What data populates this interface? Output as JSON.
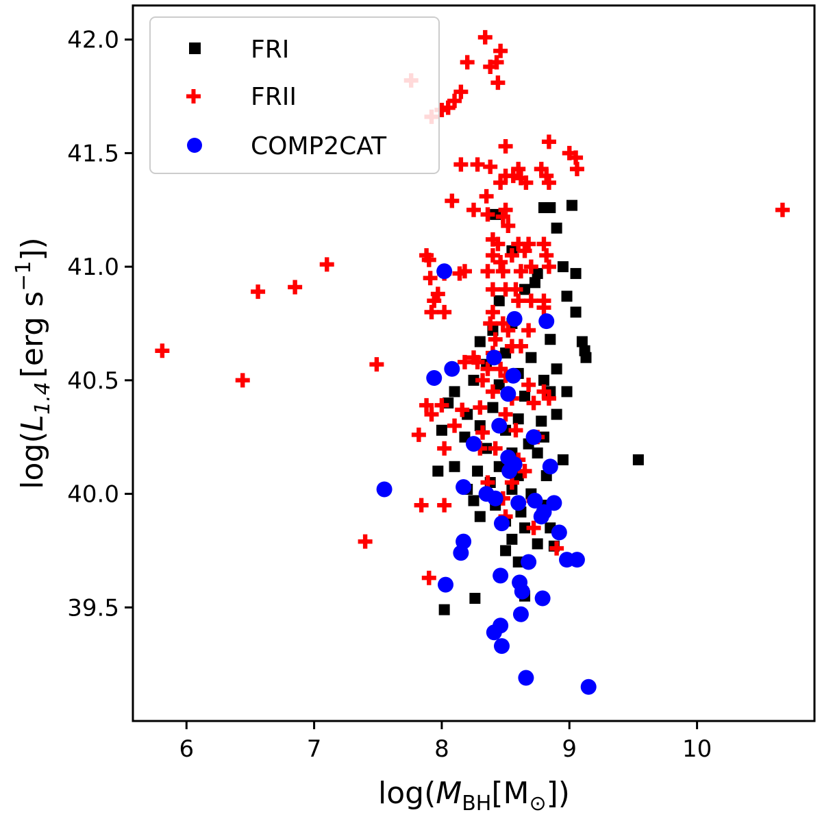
{
  "chart_data": {
    "type": "scatter",
    "title": "",
    "xlabel": {
      "prefix": "log(",
      "var": "M",
      "sub": "BH",
      "bracket_open": "[M",
      "sun": "⊙",
      "suffix": "])"
    },
    "ylabel": {
      "prefix": "log(",
      "var": "L",
      "sub": "1.4",
      "unit": "[erg s",
      "sup": "−1",
      "suffix": "])"
    },
    "xlim": [
      5.58,
      10.92
    ],
    "ylim": [
      39.0,
      42.15
    ],
    "xticks": [
      6,
      7,
      8,
      9,
      10
    ],
    "yticks": [
      39.5,
      40.0,
      40.5,
      41.0,
      41.5,
      42.0
    ],
    "xtick_labels": [
      "6",
      "7",
      "8",
      "9",
      "10"
    ],
    "ytick_labels": [
      "39.5",
      "40.0",
      "40.5",
      "41.0",
      "41.5",
      "42.0"
    ],
    "grid": false,
    "legend_position": "top-left",
    "colors": {
      "FRI": "#000000",
      "FRII": "#ff0000",
      "COMP2CAT": "#0000ff"
    },
    "series": [
      {
        "name": "FRI",
        "marker": "square",
        "points": [
          [
            8.42,
            41.23
          ],
          [
            8.8,
            41.26
          ],
          [
            8.85,
            41.26
          ],
          [
            9.02,
            41.27
          ],
          [
            8.9,
            41.17
          ],
          [
            8.55,
            41.07
          ],
          [
            8.73,
            40.93
          ],
          [
            8.95,
            41.0
          ],
          [
            9.05,
            40.97
          ],
          [
            8.45,
            40.85
          ],
          [
            8.65,
            40.9
          ],
          [
            8.75,
            40.97
          ],
          [
            8.98,
            40.87
          ],
          [
            9.05,
            40.8
          ],
          [
            8.55,
            40.75
          ],
          [
            8.4,
            40.72
          ],
          [
            8.85,
            40.68
          ],
          [
            9.1,
            40.67
          ],
          [
            9.12,
            40.63
          ],
          [
            9.13,
            40.6
          ],
          [
            8.3,
            40.67
          ],
          [
            8.5,
            40.62
          ],
          [
            8.7,
            40.6
          ],
          [
            8.9,
            40.55
          ],
          [
            8.35,
            40.57
          ],
          [
            8.6,
            40.53
          ],
          [
            8.8,
            40.5
          ],
          [
            8.1,
            40.45
          ],
          [
            8.25,
            40.5
          ],
          [
            8.45,
            40.48
          ],
          [
            8.65,
            40.43
          ],
          [
            8.85,
            40.45
          ],
          [
            8.98,
            40.45
          ],
          [
            8.05,
            40.4
          ],
          [
            8.2,
            40.35
          ],
          [
            8.4,
            40.38
          ],
          [
            8.6,
            40.33
          ],
          [
            8.78,
            40.32
          ],
          [
            8.9,
            40.35
          ],
          [
            8.0,
            40.28
          ],
          [
            8.18,
            40.25
          ],
          [
            8.3,
            40.3
          ],
          [
            8.5,
            40.28
          ],
          [
            8.68,
            40.22
          ],
          [
            8.8,
            40.25
          ],
          [
            8.35,
            40.2
          ],
          [
            8.55,
            40.18
          ],
          [
            8.75,
            40.18
          ],
          [
            8.95,
            40.15
          ],
          [
            7.97,
            40.1
          ],
          [
            8.1,
            40.12
          ],
          [
            8.28,
            40.1
          ],
          [
            8.45,
            40.12
          ],
          [
            8.6,
            40.08
          ],
          [
            8.82,
            40.08
          ],
          [
            8.2,
            40.02
          ],
          [
            8.38,
            40.05
          ],
          [
            8.55,
            40.02
          ],
          [
            8.7,
            40.0
          ],
          [
            8.25,
            39.97
          ],
          [
            8.42,
            39.95
          ],
          [
            8.62,
            39.92
          ],
          [
            8.8,
            39.95
          ],
          [
            8.3,
            39.9
          ],
          [
            8.5,
            39.88
          ],
          [
            8.65,
            39.85
          ],
          [
            8.85,
            39.85
          ],
          [
            8.55,
            39.8
          ],
          [
            8.75,
            39.78
          ],
          [
            8.88,
            39.77
          ],
          [
            8.5,
            39.75
          ],
          [
            8.6,
            39.7
          ],
          [
            8.65,
            39.55
          ],
          [
            8.02,
            39.49
          ],
          [
            8.26,
            39.54
          ],
          [
            9.54,
            40.15
          ]
        ]
      },
      {
        "name": "FRII",
        "marker": "plus",
        "points": [
          [
            8.34,
            42.01
          ],
          [
            8.46,
            41.95
          ],
          [
            8.43,
            41.9
          ],
          [
            8.2,
            41.9
          ],
          [
            8.38,
            41.88
          ],
          [
            8.44,
            41.81
          ],
          [
            7.76,
            41.82
          ],
          [
            8.15,
            41.77
          ],
          [
            8.1,
            41.73
          ],
          [
            8.05,
            41.7
          ],
          [
            8.0,
            41.69
          ],
          [
            7.92,
            41.66
          ],
          [
            8.5,
            41.53
          ],
          [
            8.84,
            41.55
          ],
          [
            9.0,
            41.5
          ],
          [
            9.05,
            41.48
          ],
          [
            8.15,
            41.45
          ],
          [
            8.28,
            41.45
          ],
          [
            8.38,
            41.44
          ],
          [
            8.6,
            41.43
          ],
          [
            8.78,
            41.43
          ],
          [
            8.5,
            41.4
          ],
          [
            8.56,
            41.4
          ],
          [
            8.82,
            41.4
          ],
          [
            9.06,
            41.43
          ],
          [
            8.62,
            41.39
          ],
          [
            8.46,
            41.37
          ],
          [
            8.66,
            41.37
          ],
          [
            8.84,
            41.37
          ],
          [
            8.35,
            41.31
          ],
          [
            8.08,
            41.29
          ],
          [
            8.25,
            41.25
          ],
          [
            8.5,
            41.25
          ],
          [
            8.36,
            41.23
          ],
          [
            8.48,
            41.22
          ],
          [
            8.52,
            41.18
          ],
          [
            8.4,
            41.12
          ],
          [
            8.44,
            41.1
          ],
          [
            8.6,
            41.1
          ],
          [
            8.68,
            41.1
          ],
          [
            8.8,
            41.1
          ],
          [
            8.65,
            41.07
          ],
          [
            7.88,
            41.05
          ],
          [
            7.9,
            41.03
          ],
          [
            8.4,
            41.05
          ],
          [
            8.46,
            41.02
          ],
          [
            8.55,
            41.05
          ],
          [
            8.82,
            41.05
          ],
          [
            8.7,
            41.0
          ],
          [
            7.91,
            40.95
          ],
          [
            8.02,
            40.97
          ],
          [
            8.14,
            40.97
          ],
          [
            8.18,
            40.98
          ],
          [
            8.36,
            40.98
          ],
          [
            8.48,
            40.98
          ],
          [
            8.62,
            40.98
          ],
          [
            8.84,
            41.0
          ],
          [
            7.97,
            40.88
          ],
          [
            8.4,
            40.9
          ],
          [
            8.5,
            40.9
          ],
          [
            8.58,
            40.9
          ],
          [
            7.94,
            40.85
          ],
          [
            8.6,
            40.85
          ],
          [
            8.7,
            40.85
          ],
          [
            8.8,
            40.85
          ],
          [
            7.92,
            40.8
          ],
          [
            8.02,
            40.8
          ],
          [
            8.4,
            40.8
          ],
          [
            8.8,
            40.82
          ],
          [
            8.38,
            40.75
          ],
          [
            8.48,
            40.75
          ],
          [
            8.52,
            40.72
          ],
          [
            8.68,
            40.72
          ],
          [
            8.42,
            40.68
          ],
          [
            8.55,
            40.65
          ],
          [
            8.62,
            40.65
          ],
          [
            8.25,
            40.6
          ],
          [
            8.4,
            40.62
          ],
          [
            8.18,
            40.58
          ],
          [
            8.28,
            40.58
          ],
          [
            8.36,
            40.55
          ],
          [
            8.46,
            40.55
          ],
          [
            8.32,
            40.5
          ],
          [
            8.5,
            40.52
          ],
          [
            8.68,
            40.48
          ],
          [
            8.8,
            40.45
          ],
          [
            8.4,
            40.45
          ],
          [
            8.55,
            40.42
          ],
          [
            8.72,
            40.4
          ],
          [
            8.84,
            40.42
          ],
          [
            7.88,
            40.39
          ],
          [
            8.0,
            40.39
          ],
          [
            8.16,
            40.37
          ],
          [
            8.3,
            40.38
          ],
          [
            8.5,
            40.35
          ],
          [
            7.92,
            40.35
          ],
          [
            7.82,
            40.26
          ],
          [
            8.1,
            40.3
          ],
          [
            8.32,
            40.27
          ],
          [
            8.58,
            40.28
          ],
          [
            8.75,
            40.25
          ],
          [
            8.02,
            40.2
          ],
          [
            8.3,
            40.2
          ],
          [
            8.42,
            40.2
          ],
          [
            8.6,
            40.15
          ],
          [
            8.65,
            40.1
          ],
          [
            8.36,
            40.05
          ],
          [
            8.55,
            40.05
          ],
          [
            8.48,
            39.98
          ],
          [
            8.72,
            39.97
          ],
          [
            7.84,
            39.95
          ],
          [
            8.02,
            39.95
          ],
          [
            8.5,
            39.9
          ],
          [
            8.72,
            39.85
          ],
          [
            8.9,
            39.76
          ],
          [
            7.4,
            39.79
          ],
          [
            7.9,
            39.63
          ],
          [
            5.81,
            40.63
          ],
          [
            6.44,
            40.5
          ],
          [
            6.56,
            40.89
          ],
          [
            6.85,
            40.91
          ],
          [
            7.1,
            41.01
          ],
          [
            7.49,
            40.57
          ],
          [
            10.67,
            41.25
          ]
        ]
      },
      {
        "name": "COMP2CAT",
        "marker": "circle",
        "points": [
          [
            8.02,
            40.98
          ],
          [
            8.57,
            40.77
          ],
          [
            8.82,
            40.76
          ],
          [
            8.41,
            40.6
          ],
          [
            8.08,
            40.55
          ],
          [
            7.94,
            40.51
          ],
          [
            8.56,
            40.52
          ],
          [
            8.52,
            40.44
          ],
          [
            8.45,
            40.3
          ],
          [
            8.72,
            40.25
          ],
          [
            8.25,
            40.22
          ],
          [
            8.52,
            40.16
          ],
          [
            8.57,
            40.13
          ],
          [
            8.53,
            40.1
          ],
          [
            8.85,
            40.12
          ],
          [
            8.17,
            40.03
          ],
          [
            7.55,
            40.02
          ],
          [
            8.35,
            40.0
          ],
          [
            8.42,
            39.98
          ],
          [
            8.6,
            39.96
          ],
          [
            8.73,
            39.97
          ],
          [
            8.8,
            39.92
          ],
          [
            8.88,
            39.96
          ],
          [
            8.78,
            39.9
          ],
          [
            8.47,
            39.87
          ],
          [
            8.92,
            39.83
          ],
          [
            8.17,
            39.79
          ],
          [
            8.15,
            39.74
          ],
          [
            8.68,
            39.7
          ],
          [
            8.98,
            39.71
          ],
          [
            9.06,
            39.71
          ],
          [
            8.46,
            39.64
          ],
          [
            8.61,
            39.61
          ],
          [
            8.03,
            39.6
          ],
          [
            8.63,
            39.57
          ],
          [
            8.79,
            39.54
          ],
          [
            8.62,
            39.47
          ],
          [
            8.46,
            39.42
          ],
          [
            8.41,
            39.39
          ],
          [
            8.47,
            39.33
          ],
          [
            8.66,
            39.19
          ],
          [
            9.15,
            39.15
          ]
        ]
      }
    ],
    "legend": [
      {
        "label": "FRI",
        "marker": "square",
        "color": "#000000"
      },
      {
        "label": "FRII",
        "marker": "plus",
        "color": "#ff0000"
      },
      {
        "label": "COMP2CAT",
        "marker": "circle",
        "color": "#0000ff"
      }
    ]
  }
}
